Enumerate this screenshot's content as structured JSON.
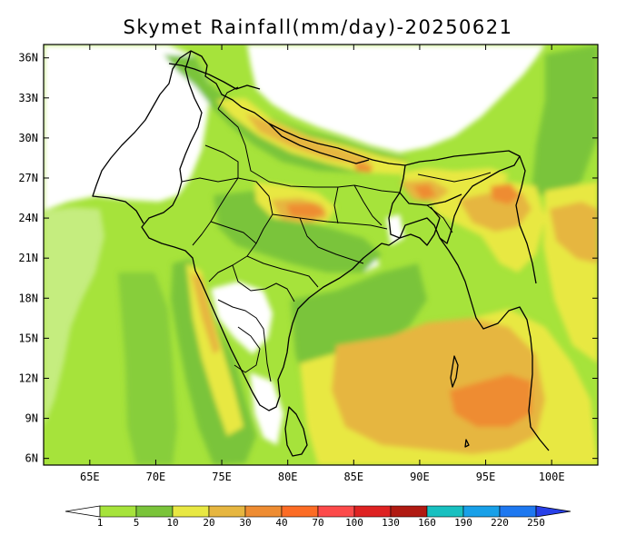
{
  "title": "Skymet Rainfall(mm/day)-20250621",
  "map": {
    "lat_ticks": [
      "36N",
      "33N",
      "30N",
      "27N",
      "24N",
      "21N",
      "18N",
      "15N",
      "12N",
      "9N",
      "6N"
    ],
    "lon_ticks": [
      "65E",
      "70E",
      "75E",
      "80E",
      "85E",
      "90E",
      "95E",
      "100E"
    ],
    "extent": {
      "lon": [
        61.5,
        103.5
      ],
      "lat": [
        5.5,
        37
      ]
    }
  },
  "colorbar": {
    "ticks": [
      "1",
      "5",
      "10",
      "20",
      "30",
      "40",
      "70",
      "100",
      "130",
      "160",
      "190",
      "220",
      "250"
    ],
    "colors": [
      "#ffffff",
      "#a6e33b",
      "#7ac43a",
      "#e8e843",
      "#e6b640",
      "#ee8c32",
      "#fc6c25",
      "#fc4a4a",
      "#de2222",
      "#b01a12",
      "#18c0c0",
      "#18a0e8",
      "#1e78f0",
      "#2840e8"
    ]
  },
  "chart_data": {
    "type": "map",
    "title": "Skymet Rainfall(mm/day)-20250621",
    "variable": "Rainfall (mm/day)",
    "date": "20250621",
    "lon_range": [
      61.5,
      103.5
    ],
    "lat_range": [
      5.5,
      37
    ],
    "levels": [
      1,
      5,
      10,
      20,
      30,
      40,
      70,
      100,
      130,
      160,
      190,
      220,
      250
    ]
  }
}
